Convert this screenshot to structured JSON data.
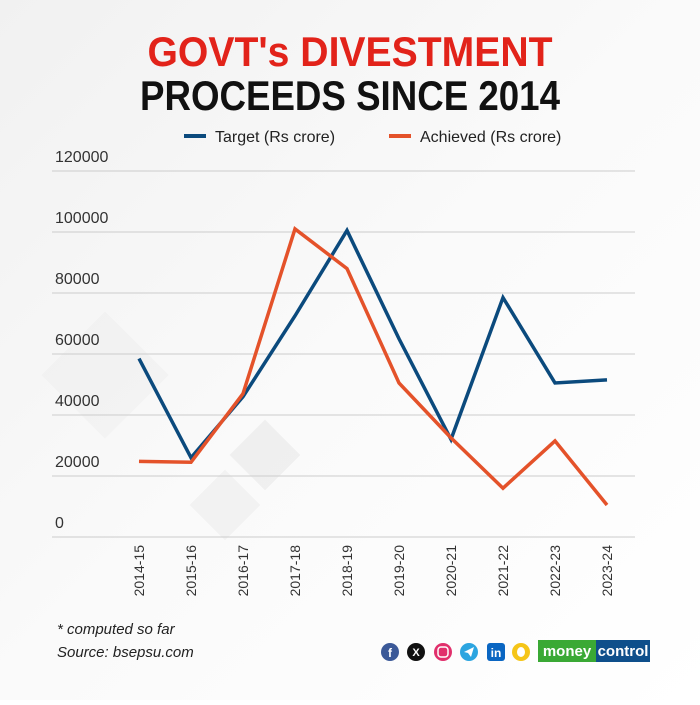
{
  "title": {
    "line1": "GOVT's DIVESTMENT",
    "line2": "PROCEEDS SINCE 2014"
  },
  "colors": {
    "title_red": "#e2231a",
    "target": "#0b4a7d",
    "achieved": "#e4522a",
    "grid": "#cccccc",
    "text": "#222222"
  },
  "chart_data": {
    "type": "line",
    "categories": [
      "2014-15",
      "2015-16",
      "2016-17",
      "2017-18",
      "2018-19",
      "2019-20",
      "2020-21",
      "2021-22",
      "2022-23",
      "2023-24"
    ],
    "series": [
      {
        "name": "Target (Rs crore)",
        "values": [
          58500,
          26000,
          46000,
          72500,
          100500,
          65000,
          32000,
          78500,
          50500,
          51500
        ]
      },
      {
        "name": "Achieved (Rs crore)",
        "values": [
          24800,
          24500,
          47000,
          101000,
          88000,
          50500,
          32500,
          16000,
          31500,
          10500
        ]
      }
    ],
    "ylim": [
      0,
      120000
    ],
    "yticks": [
      "0",
      "20000",
      "40000",
      "60000",
      "80000",
      "100000",
      "120000"
    ],
    "grid": true,
    "legend": "top"
  },
  "footer": {
    "note": "* computed so far",
    "source": "Source: bsepsu.com",
    "brand": {
      "part1": "money",
      "part2": "control"
    },
    "social_icons": [
      "facebook-icon",
      "x-icon",
      "instagram-icon",
      "telegram-icon",
      "linkedin-icon",
      "snapchat-icon"
    ]
  }
}
